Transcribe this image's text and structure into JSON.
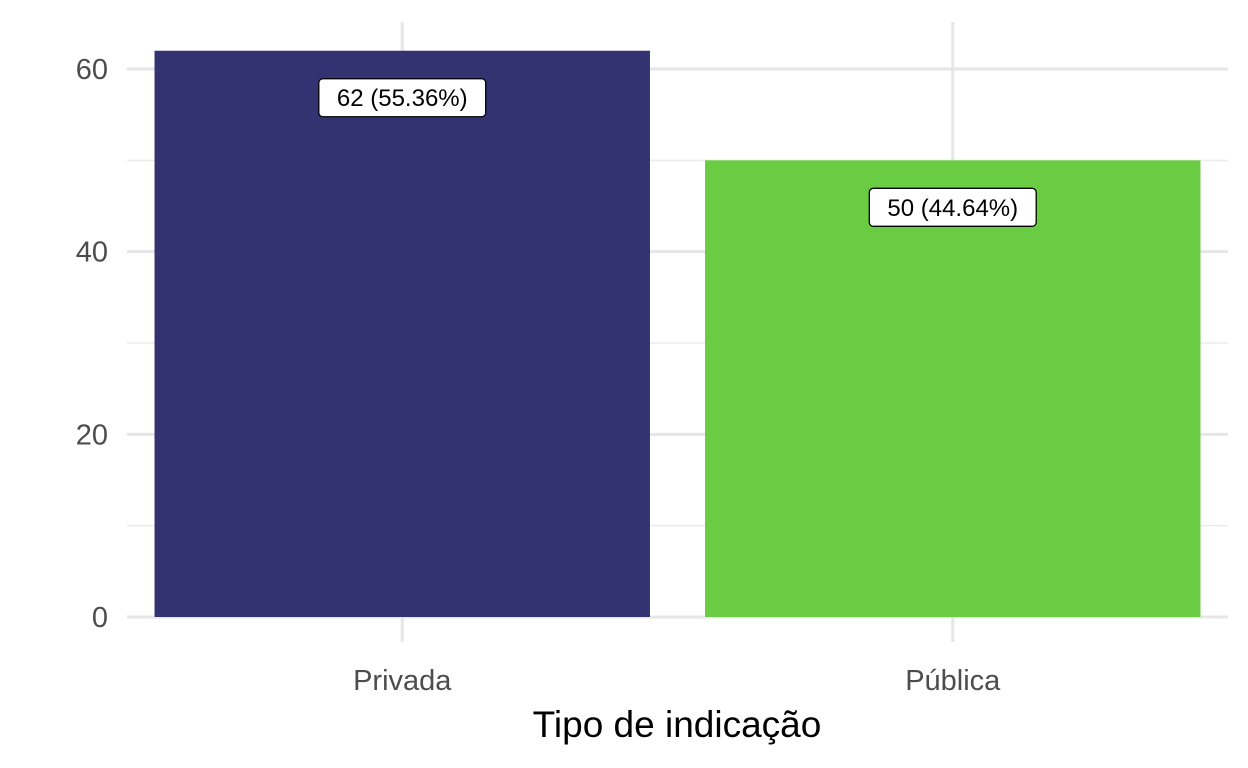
{
  "chart_data": {
    "type": "bar",
    "categories": [
      "Privada",
      "Pública"
    ],
    "values": [
      62,
      50
    ],
    "data_labels": [
      "62 (55.36%)",
      "50 (44.64%)"
    ],
    "colors": [
      "#333372",
      "#6ACC42"
    ],
    "title": "",
    "xlabel": "Tipo de indicação",
    "ylabel": "",
    "ylim": [
      0,
      62
    ],
    "y_ticks": [
      0,
      20,
      40,
      60
    ],
    "grid": true,
    "legend": "none"
  }
}
